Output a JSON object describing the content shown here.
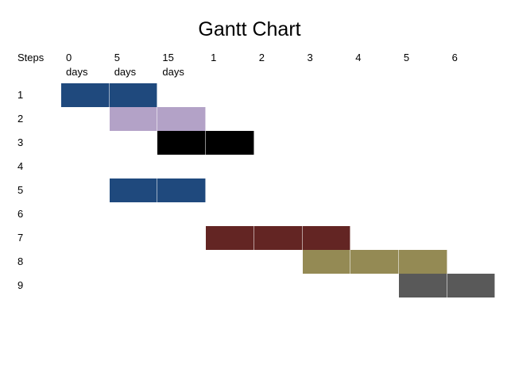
{
  "title": "Gantt Chart",
  "header_label": "Steps",
  "columns": [
    {
      "line1": "0",
      "line2": "days"
    },
    {
      "line1": "5",
      "line2": "days"
    },
    {
      "line1": "15",
      "line2": "days"
    },
    {
      "line1": "1",
      "line2": ""
    },
    {
      "line1": "2",
      "line2": ""
    },
    {
      "line1": "3",
      "line2": ""
    },
    {
      "line1": "4",
      "line2": ""
    },
    {
      "line1": "5",
      "line2": ""
    },
    {
      "line1": "6",
      "line2": ""
    }
  ],
  "rows": [
    {
      "label": "1",
      "start": 0,
      "span": 2,
      "color": "#1f497d"
    },
    {
      "label": "2",
      "start": 1,
      "span": 2,
      "color": "#b3a2c7"
    },
    {
      "label": "3",
      "start": 2,
      "span": 2,
      "color": "#000000"
    },
    {
      "label": "4",
      "start": null,
      "span": 0,
      "color": ""
    },
    {
      "label": "5",
      "start": 1,
      "span": 2,
      "color": "#1f497d"
    },
    {
      "label": "6",
      "start": null,
      "span": 0,
      "color": ""
    },
    {
      "label": "7",
      "start": 3,
      "span": 3,
      "color": "#632523"
    },
    {
      "label": "8",
      "start": 5,
      "span": 3,
      "color": "#948a54"
    },
    {
      "label": "9",
      "start": 7,
      "span": 2,
      "color": "#595959"
    }
  ]
}
